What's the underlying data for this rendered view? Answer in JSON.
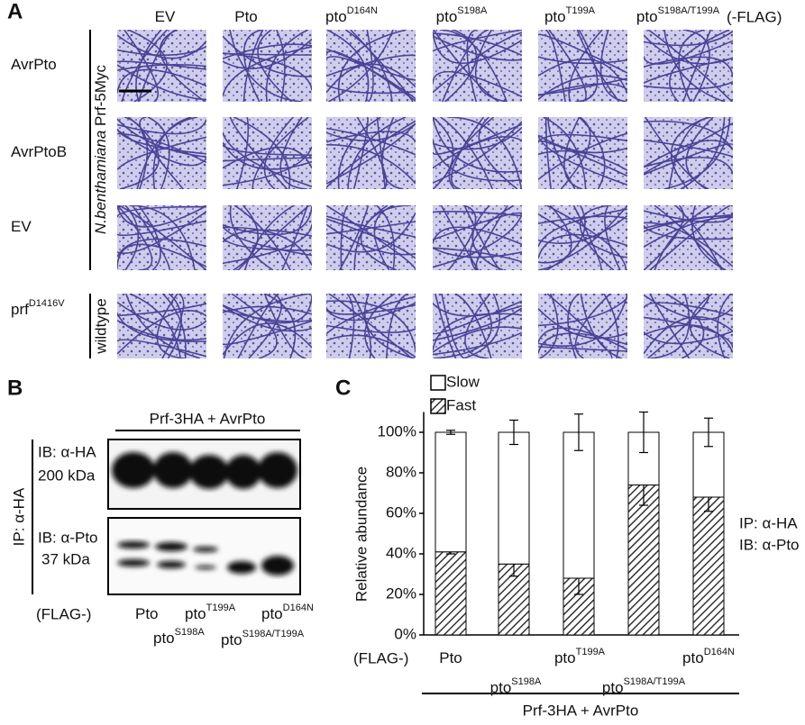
{
  "panel_a": {
    "letter": "A",
    "columns": [
      {
        "text": "EV"
      },
      {
        "text": "Pto"
      },
      {
        "text": "pto",
        "sup": "D164N"
      },
      {
        "text": "pto",
        "sup": "S198A"
      },
      {
        "text": "pto",
        "sup": "T199A"
      },
      {
        "text": "pto",
        "sup": "S198A/T199A"
      }
    ],
    "column_suffix": "(-FLAG)",
    "rows": [
      {
        "text": "AvrPto"
      },
      {
        "text": "AvrPtoB"
      },
      {
        "text": "EV"
      },
      {
        "text": "prf",
        "sup": "D1416V"
      }
    ],
    "background_species": "N.benthamiana",
    "background_construct": "Prf-5Myc",
    "wildtype_label": "wildtype"
  },
  "panel_b": {
    "letter": "B",
    "header": "Prf-3HA + AvrPto",
    "ip_label": "IP: α-HA",
    "blot_top": {
      "antibody": "IB: α-HA",
      "size": "200 kDa"
    },
    "blot_bottom": {
      "antibody": "IB: α-Pto",
      "size": "37 kDa"
    },
    "lane_prefix": "(FLAG-)",
    "lanes": [
      {
        "text": "Pto"
      },
      {
        "text": "pto",
        "sup": "S198A"
      },
      {
        "text": "pto",
        "sup": "T199A"
      },
      {
        "text": "pto",
        "sup": "S198A/T199A"
      },
      {
        "text": "pto",
        "sup": "D164N"
      }
    ]
  },
  "chart_data": {
    "type": "stacked_bar",
    "letter": "C",
    "y_label": "Relative abundance",
    "category_prefix": "(FLAG-)",
    "categories": [
      {
        "text": "Pto"
      },
      {
        "text": "pto",
        "sup": "S198A"
      },
      {
        "text": "pto",
        "sup": "T199A"
      },
      {
        "text": "pto",
        "sup": "S198A/T199A"
      },
      {
        "text": "pto",
        "sup": "D164N"
      }
    ],
    "series": [
      {
        "name": "Fast",
        "color": "#333333",
        "hatch": true,
        "values": [
          41,
          35,
          28,
          74,
          68
        ],
        "errors": [
          1,
          6,
          8,
          10,
          7
        ]
      },
      {
        "name": "Slow",
        "color": "#ffffff",
        "hatch": false,
        "values": [
          59,
          65,
          72,
          26,
          32
        ],
        "errors": [
          1,
          6,
          9,
          10,
          7
        ]
      }
    ],
    "ylim": [
      0,
      110
    ],
    "yticks": [
      {
        "value": 0,
        "label": "0%"
      },
      {
        "value": 20,
        "label": "20%"
      },
      {
        "value": 40,
        "label": "40%"
      },
      {
        "value": 60,
        "label": "60%"
      },
      {
        "value": 80,
        "label": "80%"
      },
      {
        "value": 100,
        "label": "100%"
      }
    ],
    "annotations": [
      "IP: α-HA",
      "IB: α-Pto"
    ],
    "footer": "Prf-3HA + AvrPto"
  }
}
